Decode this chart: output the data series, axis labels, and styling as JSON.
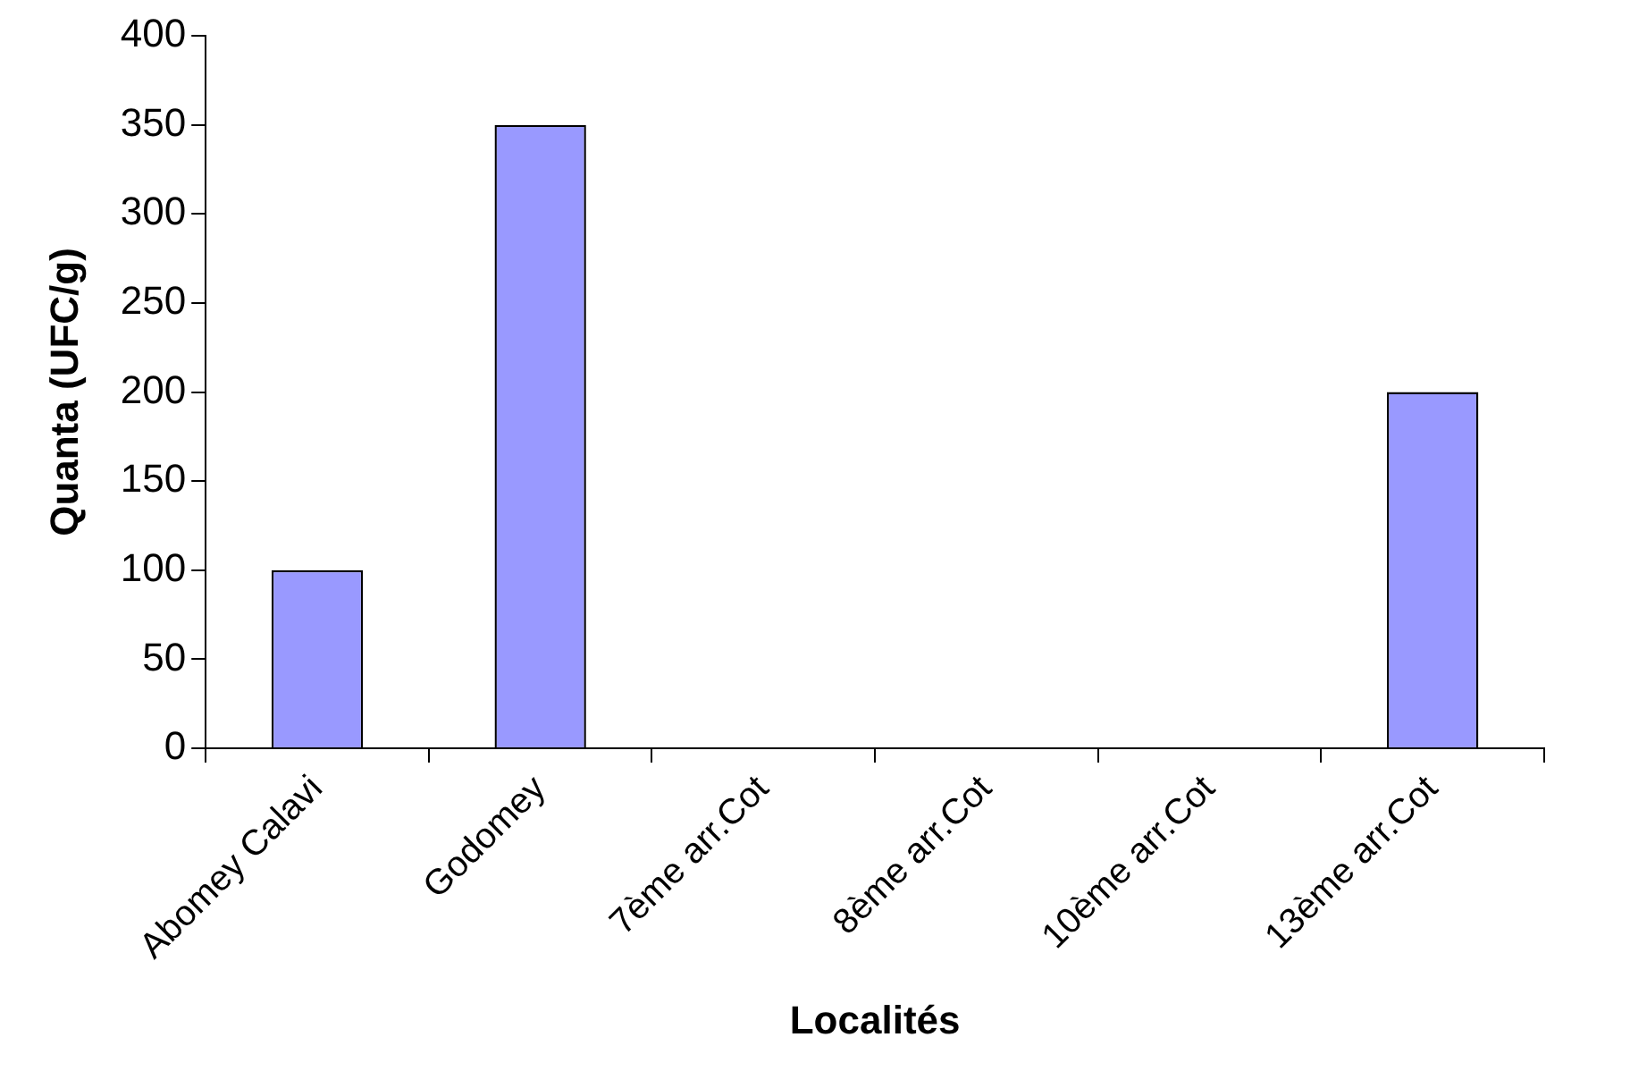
{
  "chart_data": {
    "type": "bar",
    "xlabel": "Localités",
    "ylabel": "Quanta (UFC/g)",
    "categories": [
      "Abomey Calavi",
      "Godomey",
      "7ème arr.Cot",
      "8ème arr.Cot",
      "10ème arr.Cot",
      "13ème arr.Cot"
    ],
    "values": [
      100,
      350,
      0,
      0,
      0,
      200
    ],
    "color": "#9999ff",
    "ylim": [
      0,
      400
    ],
    "yticks": [
      0,
      50,
      100,
      150,
      200,
      250,
      300,
      350,
      400
    ],
    "grid": false,
    "legend": false
  }
}
